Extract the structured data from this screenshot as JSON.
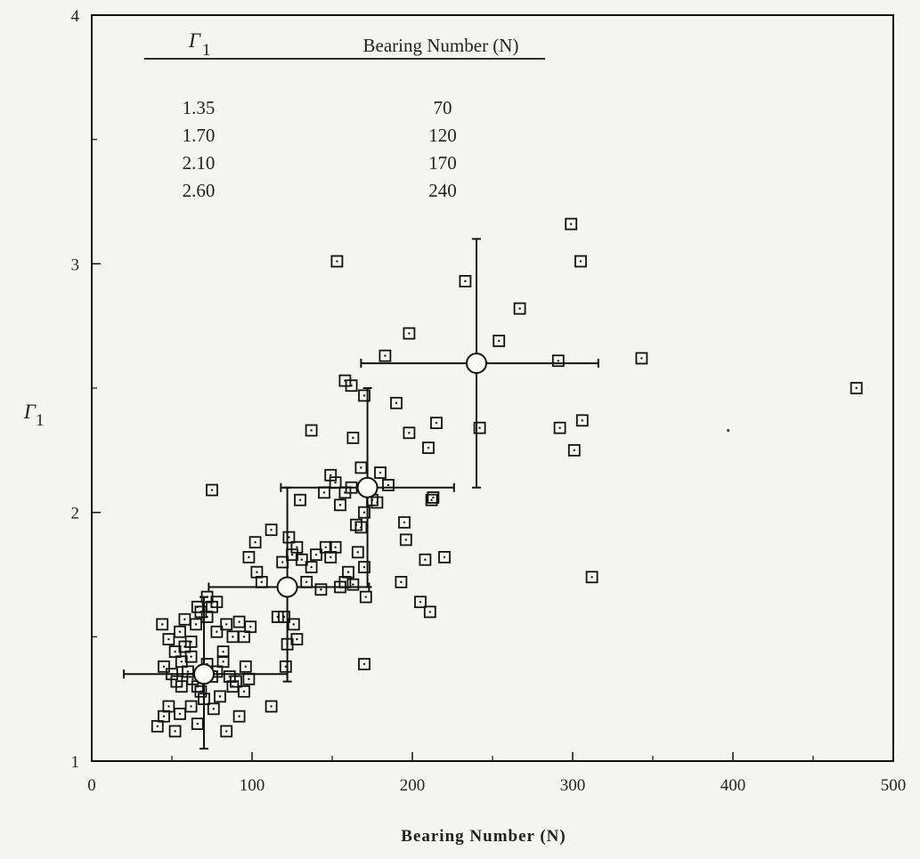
{
  "chart_data": {
    "type": "scatter",
    "title": "",
    "xlabel": "Bearing Number (N)",
    "ylabel": "Γ",
    "ylabel_sub": "1",
    "xlim": [
      0,
      500
    ],
    "ylim": [
      1,
      4
    ],
    "x_ticks": [
      "0",
      "100",
      "200",
      "300",
      "400",
      "500"
    ],
    "y_ticks": [
      "1",
      "2",
      "3",
      "4"
    ],
    "grid": false,
    "inset_table": {
      "header_gamma": "Γ",
      "header_gamma_sub": "1",
      "header_n": "Bearing Number (N)",
      "rows": [
        {
          "gamma": "1.35",
          "n": "70"
        },
        {
          "gamma": "1.70",
          "n": "120"
        },
        {
          "gamma": "2.10",
          "n": "170"
        },
        {
          "gamma": "2.60",
          "n": "240"
        }
      ]
    },
    "means": [
      {
        "x": 70,
        "y": 1.35,
        "x_err": [
          20,
          122
        ],
        "y_err": [
          1.05,
          1.66
        ]
      },
      {
        "x": 122,
        "y": 1.7,
        "x_err": [
          73,
          173
        ],
        "y_err": [
          1.32,
          2.1
        ]
      },
      {
        "x": 172,
        "y": 2.1,
        "x_err": [
          118,
          226
        ],
        "y_err": [
          1.7,
          2.5
        ]
      },
      {
        "x": 240,
        "y": 2.6,
        "x_err": [
          168,
          316
        ],
        "y_err": [
          2.1,
          3.1
        ]
      }
    ],
    "points": [
      [
        41,
        1.14
      ],
      [
        45,
        1.18
      ],
      [
        48,
        1.22
      ],
      [
        52,
        1.12
      ],
      [
        55,
        1.19
      ],
      [
        62,
        1.22
      ],
      [
        66,
        1.15
      ],
      [
        70,
        1.25
      ],
      [
        76,
        1.21
      ],
      [
        80,
        1.26
      ],
      [
        84,
        1.12
      ],
      [
        88,
        1.3
      ],
      [
        92,
        1.18
      ],
      [
        95,
        1.28
      ],
      [
        98,
        1.33
      ],
      [
        45,
        1.38
      ],
      [
        50,
        1.35
      ],
      [
        53,
        1.32
      ],
      [
        56,
        1.3
      ],
      [
        60,
        1.36
      ],
      [
        63,
        1.33
      ],
      [
        66,
        1.3
      ],
      [
        68,
        1.28
      ],
      [
        72,
        1.39
      ],
      [
        75,
        1.34
      ],
      [
        78,
        1.36
      ],
      [
        82,
        1.4
      ],
      [
        86,
        1.34
      ],
      [
        90,
        1.32
      ],
      [
        96,
        1.38
      ],
      [
        48,
        1.49
      ],
      [
        52,
        1.44
      ],
      [
        55,
        1.52
      ],
      [
        58,
        1.46
      ],
      [
        62,
        1.48
      ],
      [
        65,
        1.55
      ],
      [
        68,
        1.6
      ],
      [
        72,
        1.58
      ],
      [
        75,
        1.62
      ],
      [
        78,
        1.52
      ],
      [
        84,
        1.55
      ],
      [
        88,
        1.5
      ],
      [
        92,
        1.56
      ],
      [
        95,
        1.5
      ],
      [
        99,
        1.54
      ],
      [
        44,
        1.55
      ],
      [
        58,
        1.57
      ],
      [
        66,
        1.62
      ],
      [
        72,
        1.66
      ],
      [
        78,
        1.64
      ],
      [
        82,
        1.44
      ],
      [
        56,
        1.4
      ],
      [
        62,
        1.42
      ],
      [
        98,
        1.82
      ],
      [
        102,
        1.88
      ],
      [
        103,
        1.76
      ],
      [
        106,
        1.72
      ],
      [
        112,
        1.93
      ],
      [
        116,
        1.58
      ],
      [
        119,
        1.8
      ],
      [
        121,
        1.7
      ],
      [
        123,
        1.9
      ],
      [
        125,
        1.83
      ],
      [
        128,
        1.86
      ],
      [
        131,
        1.81
      ],
      [
        134,
        1.72
      ],
      [
        137,
        1.78
      ],
      [
        140,
        1.83
      ],
      [
        143,
        1.69
      ],
      [
        146,
        1.86
      ],
      [
        149,
        1.82
      ],
      [
        152,
        1.86
      ],
      [
        155,
        1.7
      ],
      [
        158,
        1.72
      ],
      [
        160,
        1.76
      ],
      [
        163,
        1.71
      ],
      [
        166,
        1.84
      ],
      [
        168,
        1.94
      ],
      [
        170,
        1.78
      ],
      [
        171,
        1.66
      ],
      [
        112,
        1.22
      ],
      [
        121,
        1.38
      ],
      [
        122,
        1.47
      ],
      [
        126,
        1.55
      ],
      [
        128,
        1.49
      ],
      [
        120,
        1.58
      ],
      [
        130,
        2.05
      ],
      [
        137,
        2.33
      ],
      [
        145,
        2.08
      ],
      [
        149,
        2.15
      ],
      [
        152,
        2.12
      ],
      [
        155,
        2.03
      ],
      [
        158,
        2.08
      ],
      [
        162,
        2.1
      ],
      [
        163,
        2.3
      ],
      [
        165,
        1.95
      ],
      [
        168,
        2.18
      ],
      [
        170,
        2.0
      ],
      [
        175,
        2.05
      ],
      [
        178,
        2.04
      ],
      [
        180,
        2.16
      ],
      [
        185,
        2.11
      ],
      [
        190,
        2.44
      ],
      [
        193,
        1.72
      ],
      [
        195,
        1.96
      ],
      [
        196,
        1.89
      ],
      [
        198,
        2.32
      ],
      [
        205,
        1.64
      ],
      [
        208,
        1.81
      ],
      [
        210,
        2.26
      ],
      [
        211,
        1.6
      ],
      [
        212,
        2.05
      ],
      [
        213,
        2.06
      ],
      [
        215,
        2.36
      ],
      [
        220,
        1.82
      ],
      [
        158,
        2.53
      ],
      [
        162,
        2.51
      ],
      [
        170,
        2.47
      ],
      [
        170,
        1.39
      ],
      [
        75,
        2.09
      ],
      [
        153,
        3.01
      ],
      [
        183,
        2.63
      ],
      [
        198,
        2.72
      ],
      [
        233,
        2.93
      ],
      [
        242,
        2.34
      ],
      [
        254,
        2.69
      ],
      [
        267,
        2.82
      ],
      [
        291,
        2.61
      ],
      [
        292,
        2.34
      ],
      [
        299,
        3.16
      ],
      [
        301,
        2.25
      ],
      [
        305,
        3.01
      ],
      [
        306,
        2.37
      ],
      [
        312,
        1.74
      ],
      [
        343,
        2.62
      ],
      [
        477,
        2.5
      ]
    ]
  }
}
